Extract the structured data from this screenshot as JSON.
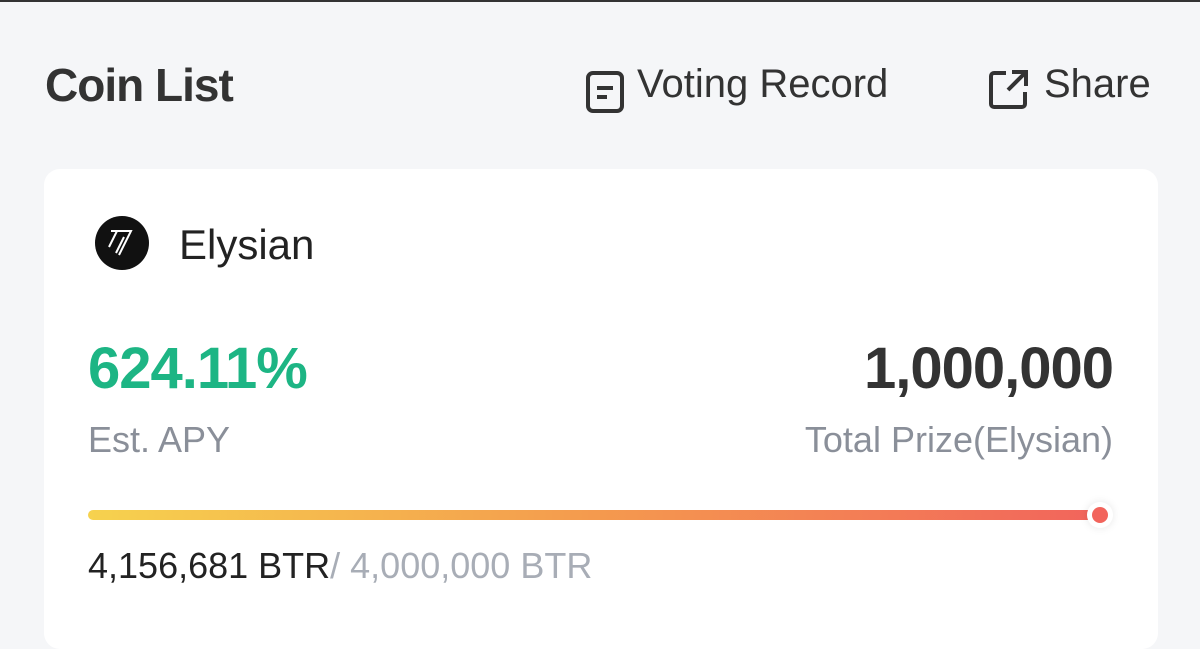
{
  "header": {
    "title": "Coin List",
    "actions": [
      "Voting Record",
      "Share"
    ]
  },
  "card": {
    "name": "Elysian",
    "apy": {
      "value": "624.11%",
      "label": "Est. APY"
    },
    "prize": {
      "value": "1,000,000",
      "label": "Total Prize(Elysian)"
    },
    "progress": {
      "current": "4,156,681 BTR",
      "target": "/ 4,000,000 BTR"
    }
  }
}
